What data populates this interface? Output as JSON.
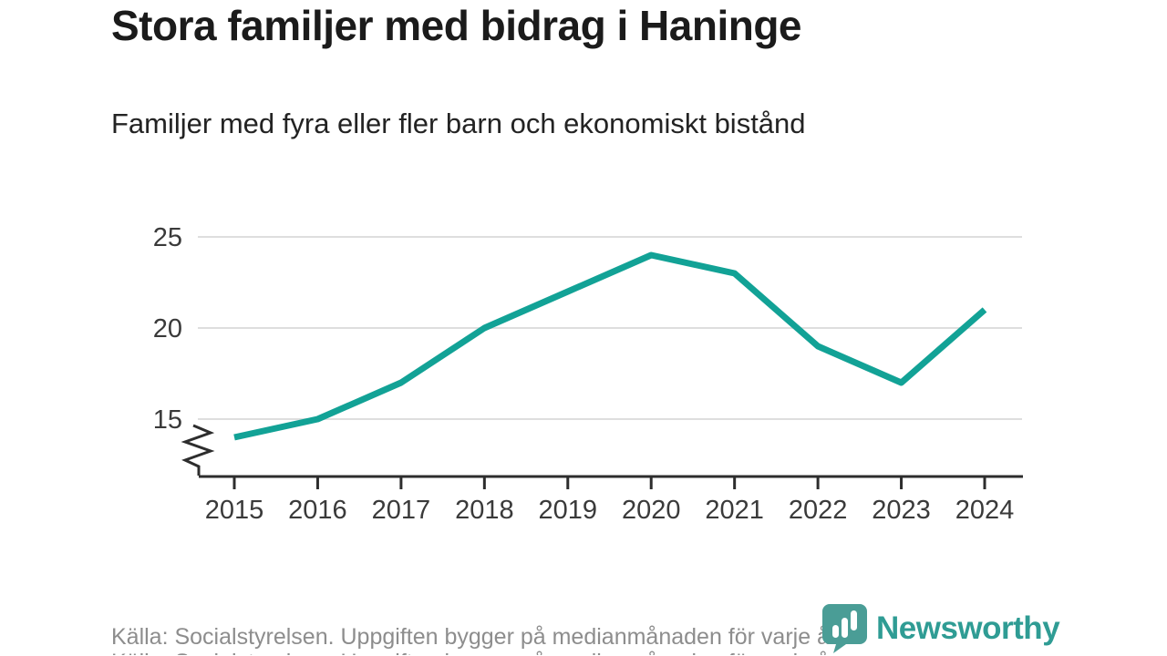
{
  "header": {
    "title": "Stora familjer med bidrag i Haninge",
    "subtitle": "Familjer med fyra eller fler barn och ekonomiskt bistånd"
  },
  "footer": {
    "source": "Källa: Socialstyrelsen. Uppgiften bygger på medianmånaden för varje år",
    "brand": "Newsworthy"
  },
  "colors": {
    "line": "#12a296",
    "grid": "#dedede",
    "axis": "#2d2d2d",
    "title_text": "#1b1b1b",
    "subtitle_text": "#232323",
    "tick_text": "#3a3a3a",
    "source_text": "#8d8d8d",
    "brand_icon": "#4a9d96",
    "brand_text": "#2f9c94",
    "background": "#ffffff"
  },
  "chart_data": {
    "type": "line",
    "title": "Stora familjer med bidrag i Haninge",
    "subtitle": "Familjer med fyra eller fler barn och ekonomiskt bistånd",
    "categories": [
      "2015",
      "2016",
      "2017",
      "2018",
      "2019",
      "2020",
      "2021",
      "2022",
      "2023",
      "2024"
    ],
    "values": [
      14,
      15,
      17,
      20,
      22,
      24,
      23,
      19,
      17,
      21
    ],
    "xlabel": "",
    "ylabel": "",
    "yticks": [
      15,
      20,
      25
    ],
    "ylim_display": [
      13,
      25.5
    ],
    "axis_break": true,
    "grid": "horizontal",
    "legend": "none",
    "line_color": "#12a296"
  }
}
